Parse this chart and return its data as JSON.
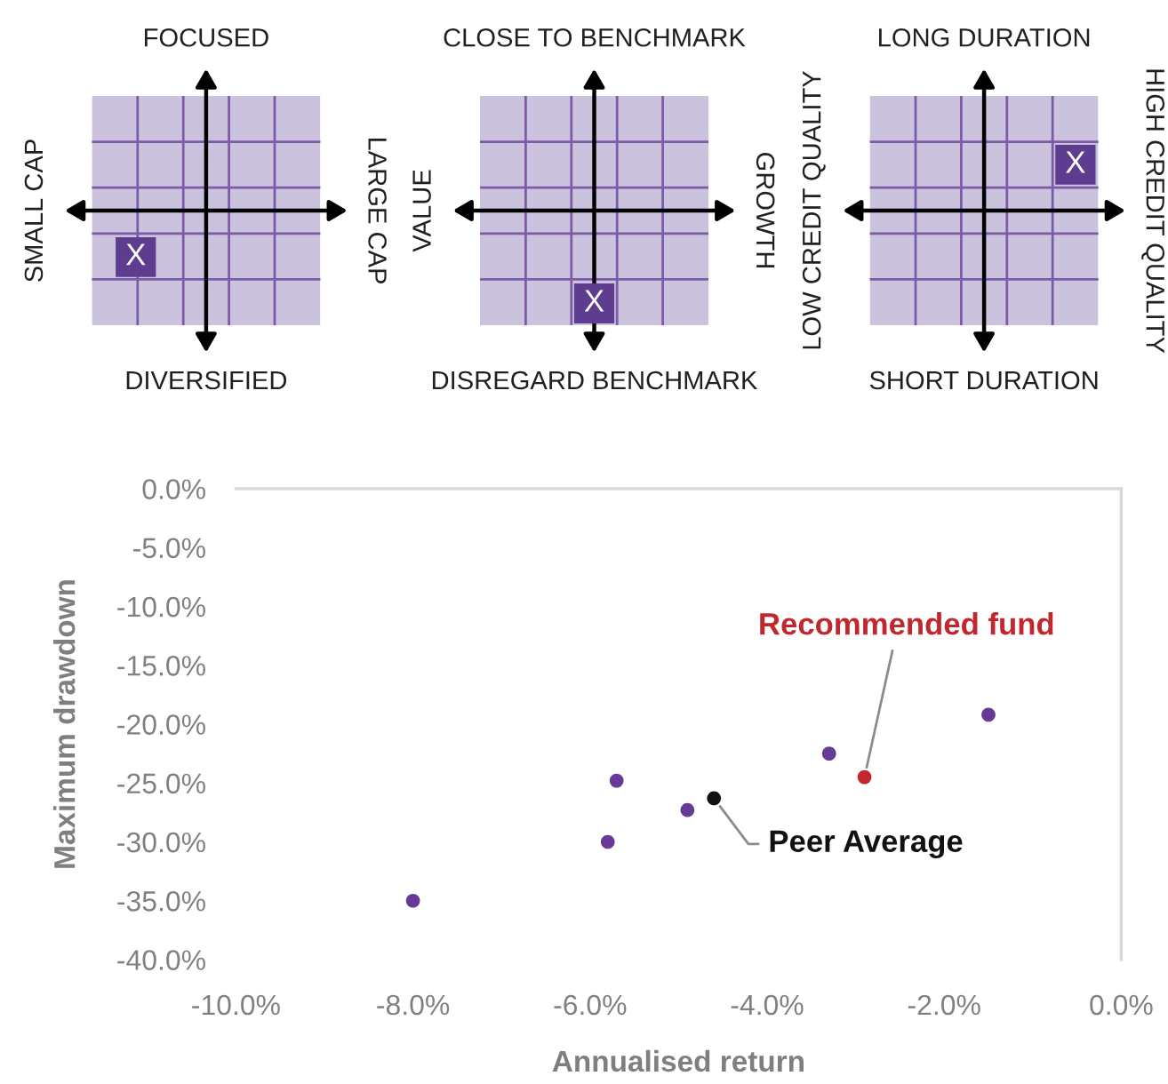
{
  "chart_data": [
    {
      "type": "other",
      "title": "FOCUSED",
      "xlabel": "DIVERSIFIED",
      "ylabel": "SMALL CAP",
      "y2label": "LARGE CAP",
      "annotations": [
        "X"
      ]
    },
    {
      "type": "other",
      "title": "CLOSE TO BENCHMARK",
      "xlabel": "DISREGARD BENCHMARK",
      "ylabel": "VALUE",
      "y2label": "GROWTH",
      "annotations": [
        "X"
      ]
    },
    {
      "type": "other",
      "title": "LONG DURATION",
      "xlabel": "SHORT DURATION",
      "ylabel": "LOW CREDIT QUALITY",
      "y2label": "HIGH CREDIT QUALITY",
      "annotations": [
        "X"
      ]
    },
    {
      "type": "scatter",
      "xlabel": "Annualised return",
      "ylabel": "Maximum drawdown",
      "marker": "circle",
      "xlim": [
        -10,
        0
      ],
      "ylim": [
        -40,
        0
      ],
      "xticks": [
        {
          "value": -10,
          "label": "-10.0%"
        },
        {
          "value": -8,
          "label": "-8.0%"
        },
        {
          "value": -6,
          "label": "-6.0%"
        },
        {
          "value": -4,
          "label": "-4.0%"
        },
        {
          "value": -2,
          "label": "-2.0%"
        },
        {
          "value": 0,
          "label": "0.0%"
        }
      ],
      "yticks": [
        {
          "value": 0,
          "label": "0.0%"
        },
        {
          "value": -5,
          "label": "-5.0%"
        },
        {
          "value": -10,
          "label": "-10.0%"
        },
        {
          "value": -15,
          "label": "-15.0%"
        },
        {
          "value": -20,
          "label": "-20.0%"
        },
        {
          "value": -25,
          "label": "-25.0%"
        },
        {
          "value": -30,
          "label": "-30.0%"
        },
        {
          "value": -35,
          "label": "-35.0%"
        },
        {
          "value": -40,
          "label": "-40.0%"
        }
      ],
      "series": [
        {
          "color": "#663a96",
          "x": [
            -8.0,
            -5.7,
            -5.8,
            -4.9,
            -3.3,
            -1.5
          ],
          "values": [
            -35.0,
            -24.8,
            -30.0,
            -27.3,
            -22.5,
            -19.2
          ]
        },
        {
          "name": "Peer Average",
          "color": "#111111",
          "x": [
            -4.6
          ],
          "values": [
            -26.3
          ]
        },
        {
          "name": "Recommended fund",
          "color": "#c0282d",
          "x": [
            -2.9
          ],
          "values": [
            -24.5
          ]
        }
      ]
    }
  ]
}
